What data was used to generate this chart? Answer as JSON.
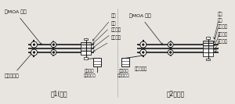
{
  "bg_color": "#e8e5e0",
  "fig_width": 3.0,
  "fig_height": 1.33,
  "dpi": 100,
  "left_label": "图1(误）",
  "right_label": "图2（正）",
  "left_moa_label": "与MOA 相连",
  "right_moa_label": "与MOA 相连",
  "left_frame_label": "与构架相连",
  "right_frame_label": "与构架相连",
  "left_right_labels": [
    "螺栓",
    "弹簧",
    "金属垫片",
    "绝缘垫片"
  ],
  "right_right_labels": [
    "螺栓",
    "弹簧",
    "金属垫片",
    "绝缘垫片",
    "绝缘垫片"
  ],
  "left_monitor_label": "计数器或\n在线监测仪",
  "right_monitor_label": "计数器或\n在线监测仪",
  "line_color": "#1a1a1a",
  "text_color": "#111111"
}
